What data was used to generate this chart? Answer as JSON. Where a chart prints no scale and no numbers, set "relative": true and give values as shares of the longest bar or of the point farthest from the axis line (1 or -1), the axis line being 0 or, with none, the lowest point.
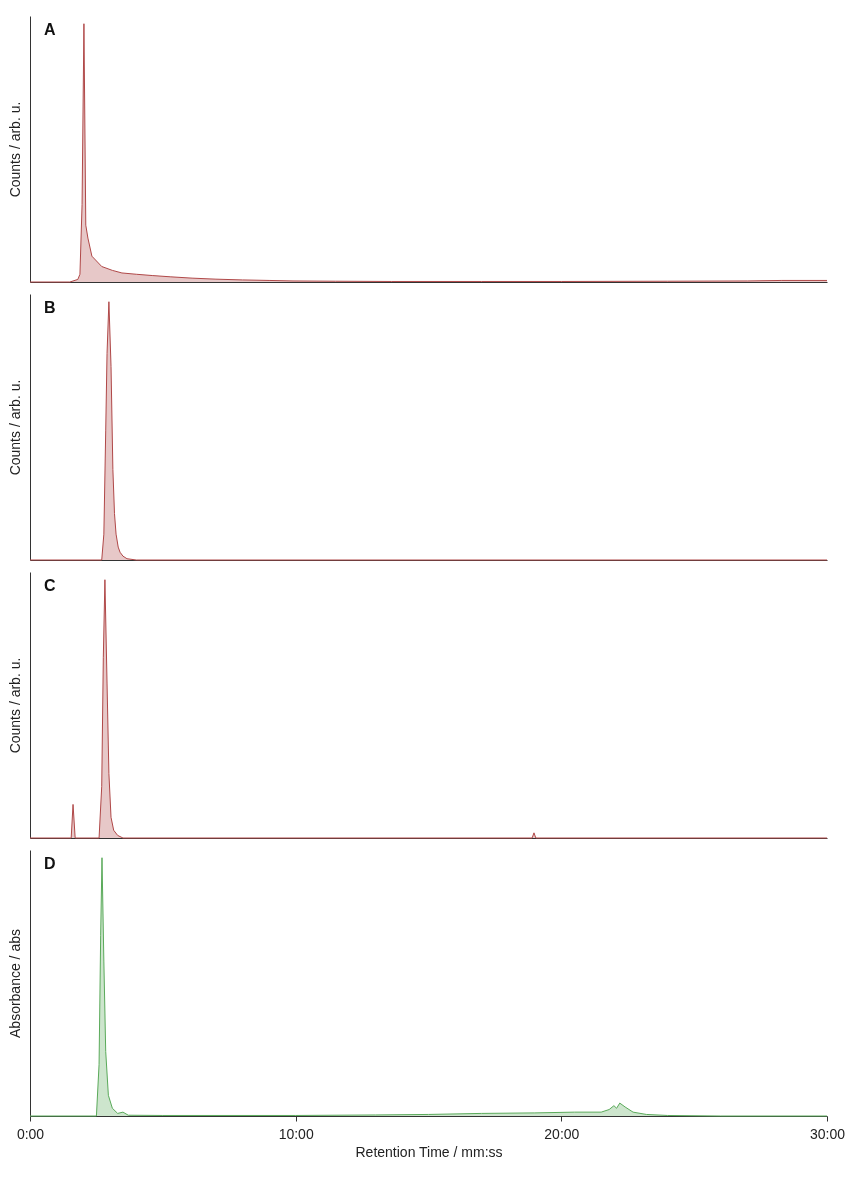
{
  "chart_data": [
    {
      "type": "area",
      "title": "A",
      "ylabel": "Counts / arb. u.",
      "relative": true,
      "xlim": [
        0,
        30
      ],
      "tick_labels": false,
      "grid": false,
      "series": [
        {
          "color": "#b04848",
          "x": [
            0,
            1.5,
            1.8,
            1.88,
            1.96,
            2.03,
            2.1,
            2.18,
            2.33,
            2.7,
            3.1,
            3.46,
            4.0,
            4.6,
            5.3,
            6.1,
            7.0,
            8.0,
            9.0,
            9.9,
            11.5,
            13.6,
            17,
            20,
            24,
            27,
            28.3,
            30
          ],
          "values": [
            0,
            0,
            0.01,
            0.03,
            0.3,
            1,
            0.22,
            0.17,
            0.1,
            0.06,
            0.045,
            0.035,
            0.03,
            0.025,
            0.02,
            0.015,
            0.011,
            0.008,
            0.006,
            0.004,
            0.003,
            0.002,
            0.002,
            0.002,
            0.003,
            0.004,
            0.006,
            0.006
          ]
        }
      ]
    },
    {
      "type": "area",
      "title": "B",
      "ylabel": "Counts / arb. u.",
      "relative": true,
      "xlim": [
        0,
        30
      ],
      "tick_labels": false,
      "grid": false,
      "series": [
        {
          "color": "#b04848",
          "x": [
            0,
            2.7,
            2.78,
            2.85,
            2.9,
            2.97,
            3.05,
            3.12,
            3.18,
            3.24,
            3.32,
            3.39,
            3.5,
            3.65,
            4.0,
            30
          ],
          "values": [
            0,
            0,
            0.1,
            0.5,
            0.8,
            1,
            0.75,
            0.35,
            0.18,
            0.1,
            0.05,
            0.03,
            0.015,
            0.005,
            0,
            0
          ]
        }
      ]
    },
    {
      "type": "area",
      "title": "C",
      "ylabel": "Counts / arb. u.",
      "relative": true,
      "xlim": [
        0,
        30
      ],
      "tick_labels": false,
      "grid": false,
      "series": [
        {
          "color": "#b04848",
          "x": [
            0,
            1.55,
            1.62,
            1.7,
            2.6,
            2.7,
            2.76,
            2.82,
            2.9,
            2.97,
            3.05,
            3.15,
            3.3,
            3.5,
            18.9,
            18.97,
            19.04,
            30
          ],
          "values": [
            0,
            0,
            0.13,
            0,
            0,
            0.2,
            0.7,
            1,
            0.6,
            0.25,
            0.08,
            0.03,
            0.01,
            0,
            0,
            0.02,
            0,
            0
          ]
        }
      ]
    },
    {
      "type": "area",
      "title": "D",
      "ylabel": "Absorbance / abs",
      "xlabel": "Retention Time / mm:ss",
      "relative": true,
      "xlim": [
        0,
        30
      ],
      "xticks": [
        {
          "value": 0,
          "label": "0:00"
        },
        {
          "value": 10,
          "label": "10:00"
        },
        {
          "value": 20,
          "label": "20:00"
        },
        {
          "value": 30,
          "label": "30:00"
        }
      ],
      "tick_labels": "x",
      "grid": false,
      "series": [
        {
          "color": "#5aaa5a",
          "x": [
            0,
            2.5,
            2.6,
            2.66,
            2.71,
            2.78,
            2.85,
            2.95,
            3.1,
            3.3,
            3.5,
            3.7,
            5,
            10,
            13,
            15,
            17,
            19,
            20.5,
            21.5,
            21.8,
            21.98,
            22.08,
            22.2,
            22.4,
            22.7,
            23.2,
            24,
            26,
            30
          ],
          "values": [
            0,
            0,
            0.2,
            0.7,
            1,
            0.6,
            0.25,
            0.08,
            0.03,
            0.01,
            0.015,
            0.003,
            0.002,
            0.002,
            0.004,
            0.006,
            0.01,
            0.012,
            0.015,
            0.015,
            0.025,
            0.04,
            0.03,
            0.05,
            0.035,
            0.015,
            0.006,
            0.002,
            0,
            0
          ]
        }
      ]
    }
  ]
}
